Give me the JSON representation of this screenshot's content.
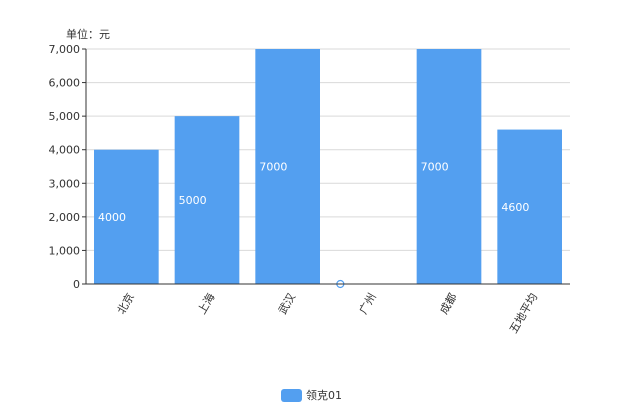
{
  "chart_data": {
    "type": "bar",
    "unit_label": "单位：元",
    "categories": [
      "北京",
      "上海",
      "武汉",
      "广州",
      "成都",
      "五地平均"
    ],
    "series": [
      {
        "name": "领克01",
        "values": [
          4000,
          5000,
          7000,
          0,
          7000,
          4600
        ],
        "color": "#539ff0"
      }
    ],
    "ylim": [
      0,
      7000
    ],
    "yticks": [
      "0",
      "1,000",
      "2,000",
      "3,000",
      "4,000",
      "5,000",
      "6,000",
      "7,000"
    ],
    "ytick_values": [
      0,
      1000,
      2000,
      3000,
      4000,
      5000,
      6000,
      7000
    ],
    "grid": true,
    "legend": "bottom-center"
  }
}
